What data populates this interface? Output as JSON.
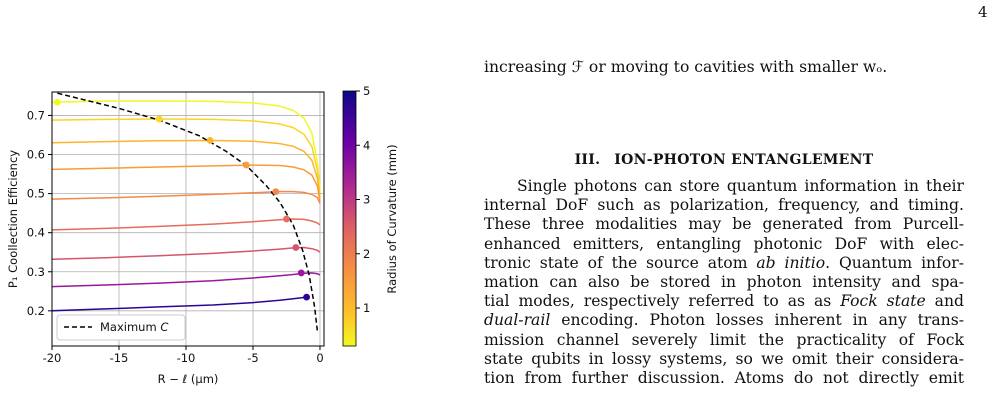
{
  "page": {
    "number": "4"
  },
  "body": {
    "intro_line": "increasing ℱ or moving to cavities with smaller wₒ.",
    "section_number": "III.",
    "section_title": "ION-PHOTON ENTANGLEMENT",
    "paragraph_lines": [
      "Single photons can store quantum information in their",
      "internal DoF such as polarization, frequency, and timing.",
      "These three modalities may be generated from Purcell-",
      "enhanced emitters, entangling photonic DoF with elec-",
      "tronic state of the source atom ab initio. Quantum infor-",
      "mation can also be stored in photon intensity and spa-",
      "tial modes, respectively referred to as as Fock state and",
      "dual-rail encoding. Photon losses inherent in any trans-",
      "mission channel severely limit the practicality of Fock",
      "state qubits in lossy systems, so we omit their considera-",
      "tion from further discussion. Atoms do not directly emit"
    ]
  },
  "chart_data": {
    "type": "line",
    "xlabel": "R − ℓ (μm)",
    "ylabel": "P₁ Coollection Efficiency",
    "xlim": [
      -20,
      0.3
    ],
    "ylim": [
      0.11,
      0.76
    ],
    "xticks": [
      -20,
      -15,
      -10,
      -5,
      0
    ],
    "xtick_labels": [
      "-20",
      "-15",
      "-10",
      "-5",
      "0"
    ],
    "yticks": [
      0.2,
      0.3,
      0.4,
      0.5,
      0.6,
      0.7
    ],
    "ytick_labels": [
      "0.2",
      "0.3",
      "0.4",
      "0.5",
      "0.6",
      "0.7"
    ],
    "grid": true,
    "legend": {
      "position": "lower-left",
      "entries": [
        {
          "label": "Maximum C",
          "style": "dashed",
          "color": "#000000"
        }
      ]
    },
    "colorbar": {
      "label": "Radius of Curvature (mm)",
      "range": [
        0.3,
        5
      ],
      "ticks": [
        1,
        2,
        3,
        4,
        5
      ],
      "tick_labels": [
        "1",
        "2",
        "3",
        "4",
        "5"
      ],
      "colormap": "plasma"
    },
    "series": [
      {
        "roc_mm": 0.4,
        "color": "#f0f921",
        "x": [
          -20,
          -16,
          -12,
          -8,
          -5,
          -3,
          -2,
          -1.2,
          -0.6,
          -0.2,
          0
        ],
        "y": [
          0.734,
          0.737,
          0.737,
          0.736,
          0.732,
          0.724,
          0.713,
          0.693,
          0.655,
          0.58,
          0.51
        ]
      },
      {
        "roc_mm": 0.8,
        "color": "#fbd524",
        "x": [
          -20,
          -16,
          -12,
          -8,
          -5,
          -3,
          -2,
          -1.2,
          -0.6,
          -0.2,
          0
        ],
        "y": [
          0.688,
          0.69,
          0.691,
          0.69,
          0.686,
          0.678,
          0.669,
          0.652,
          0.62,
          0.56,
          0.5
        ]
      },
      {
        "roc_mm": 1.3,
        "color": "#fdb42f",
        "x": [
          -20,
          -16,
          -12,
          -8,
          -5,
          -3,
          -2,
          -1.2,
          -0.6,
          -0.2,
          0
        ],
        "y": [
          0.63,
          0.633,
          0.635,
          0.636,
          0.634,
          0.628,
          0.621,
          0.608,
          0.585,
          0.54,
          0.49
        ]
      },
      {
        "roc_mm": 1.8,
        "color": "#fa9b3a",
        "x": [
          -20,
          -16,
          -12,
          -8,
          -5,
          -3,
          -2,
          -1.2,
          -0.6,
          -0.2,
          0
        ],
        "y": [
          0.562,
          0.565,
          0.568,
          0.571,
          0.573,
          0.572,
          0.568,
          0.561,
          0.547,
          0.52,
          0.48
        ]
      },
      {
        "roc_mm": 2.3,
        "color": "#f48849",
        "x": [
          -20,
          -16,
          -12,
          -8,
          -5,
          -3,
          -2,
          -1.2,
          -0.6,
          -0.2,
          0
        ],
        "y": [
          0.486,
          0.489,
          0.493,
          0.498,
          0.502,
          0.505,
          0.505,
          0.503,
          0.498,
          0.49,
          0.475
        ]
      },
      {
        "roc_mm": 2.8,
        "color": "#e66c5c",
        "x": [
          -20,
          -16,
          -12,
          -8,
          -5,
          -3,
          -2,
          -1.2,
          -0.6,
          -0.2,
          0
        ],
        "y": [
          0.407,
          0.411,
          0.416,
          0.422,
          0.428,
          0.433,
          0.435,
          0.434,
          0.43,
          0.425,
          0.42
        ]
      },
      {
        "roc_mm": 3.3,
        "color": "#d5546e",
        "x": [
          -20,
          -16,
          -12,
          -8,
          -5,
          -3,
          -2,
          -1.2,
          -0.6,
          -0.2,
          0
        ],
        "y": [
          0.332,
          0.336,
          0.341,
          0.347,
          0.353,
          0.358,
          0.361,
          0.362,
          0.359,
          0.355,
          0.35
        ]
      },
      {
        "roc_mm": 3.9,
        "color": "#9c179e",
        "x": [
          -20,
          -16,
          -12,
          -8,
          -5,
          -3,
          -2,
          -1.2,
          -0.6,
          -0.2,
          0
        ],
        "y": [
          0.262,
          0.266,
          0.271,
          0.277,
          0.284,
          0.29,
          0.293,
          0.296,
          0.297,
          0.295,
          0.292
        ]
      },
      {
        "roc_mm": 4.6,
        "color": "#2a0593",
        "x": [
          -20,
          -16,
          -12,
          -8,
          -5,
          -3,
          -2,
          -1.2,
          -0.8
        ],
        "y": [
          0.2,
          0.205,
          0.21,
          0.215,
          0.221,
          0.227,
          0.231,
          0.234,
          0.235
        ]
      }
    ],
    "maximum_points": [
      {
        "x": -19.6,
        "y": 0.734,
        "color": "#f0f921"
      },
      {
        "x": -12.0,
        "y": 0.691,
        "color": "#fbd524"
      },
      {
        "x": -8.2,
        "y": 0.636,
        "color": "#fdb42f"
      },
      {
        "x": -5.5,
        "y": 0.573,
        "color": "#fa9b3a"
      },
      {
        "x": -3.3,
        "y": 0.505,
        "color": "#f48849"
      },
      {
        "x": -2.5,
        "y": 0.435,
        "color": "#e66c5c"
      },
      {
        "x": -1.8,
        "y": 0.362,
        "color": "#d5546e"
      },
      {
        "x": -1.4,
        "y": 0.297,
        "color": "#9c179e"
      },
      {
        "x": -1.0,
        "y": 0.235,
        "color": "#2a0593"
      }
    ],
    "maximum_curve": {
      "name": "Maximum C",
      "x": [
        -19.6,
        -15,
        -12,
        -9,
        -7,
        -5.5,
        -4,
        -3,
        -2,
        -1.3,
        -0.8,
        -0.4,
        -0.2
      ],
      "y": [
        0.757,
        0.718,
        0.688,
        0.648,
        0.608,
        0.572,
        0.52,
        0.478,
        0.42,
        0.355,
        0.29,
        0.21,
        0.15
      ]
    }
  }
}
